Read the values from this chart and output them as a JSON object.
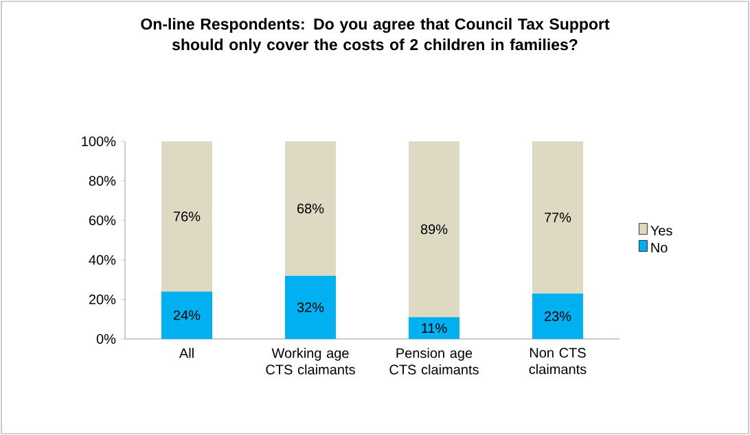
{
  "chart_data": {
    "type": "bar",
    "stacked": true,
    "title": "On-line Respondents: Do you agree that Council Tax Support should only cover the costs of 2 children in families?",
    "categories": [
      "All",
      "Working age CTS claimants",
      "Pension age CTS claimants",
      "Non CTS claimants"
    ],
    "series": [
      {
        "name": "No",
        "color": "#00b0f0",
        "values": [
          24,
          32,
          11,
          23
        ],
        "value_labels": [
          "24%",
          "32%",
          "11%",
          "23%"
        ]
      },
      {
        "name": "Yes",
        "color": "#ddd9c3",
        "values": [
          76,
          68,
          89,
          77
        ],
        "value_labels": [
          "76%",
          "68%",
          "89%",
          "77%"
        ]
      }
    ],
    "ylim": [
      0,
      100
    ],
    "yticks": [
      {
        "value": 0,
        "label": "0%"
      },
      {
        "value": 20,
        "label": "20%"
      },
      {
        "value": 40,
        "label": "40%"
      },
      {
        "value": 60,
        "label": "60%"
      },
      {
        "value": 80,
        "label": "80%"
      },
      {
        "value": 100,
        "label": "100%"
      }
    ],
    "legend": "right",
    "grid": false
  }
}
